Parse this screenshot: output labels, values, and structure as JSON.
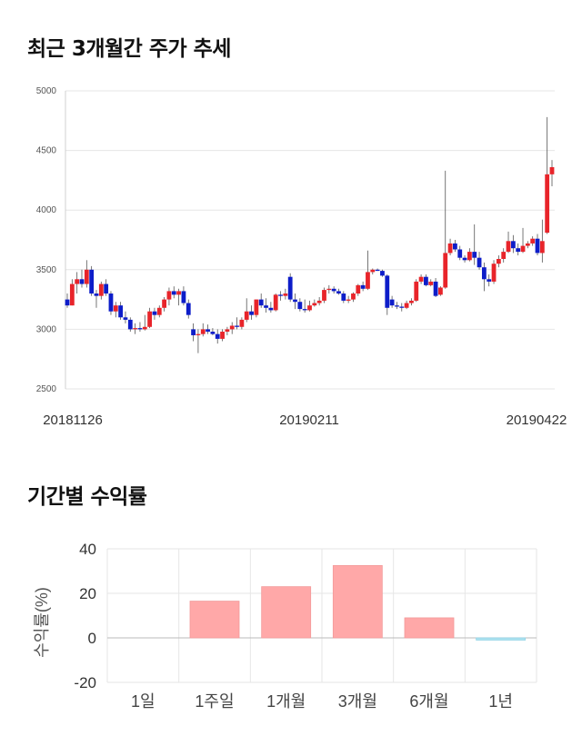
{
  "sections": {
    "price_title": "최근 3개월간 주가 추세",
    "returns_title": "기간별 수익률"
  },
  "colors": {
    "up": "#e8242a",
    "down": "#0d1dc9",
    "bar_positive": "#ffa8a8",
    "bar_negative": "#aee3f0",
    "grid": "#e6e6e6"
  },
  "chart_data": [
    {
      "type": "candlestick",
      "title": "최근 3개월간 주가 추세",
      "ylim": [
        2500,
        5000
      ],
      "yticks": [
        2500,
        3000,
        3500,
        4000,
        4500,
        5000
      ],
      "xticks": [
        "20181126",
        "20190211",
        "20190422"
      ],
      "grid": true,
      "candles": [
        [
          3250,
          3300,
          3180,
          3200
        ],
        [
          3200,
          3420,
          3200,
          3380
        ],
        [
          3380,
          3480,
          3300,
          3420
        ],
        [
          3420,
          3500,
          3350,
          3380
        ],
        [
          3380,
          3580,
          3350,
          3500
        ],
        [
          3500,
          3530,
          3280,
          3300
        ],
        [
          3300,
          3330,
          3180,
          3280
        ],
        [
          3280,
          3400,
          3250,
          3380
        ],
        [
          3380,
          3420,
          3280,
          3300
        ],
        [
          3300,
          3320,
          3120,
          3150
        ],
        [
          3150,
          3230,
          3100,
          3200
        ],
        [
          3200,
          3230,
          3080,
          3100
        ],
        [
          3100,
          3150,
          3050,
          3080
        ],
        [
          3080,
          3100,
          2980,
          3000
        ],
        [
          3000,
          3050,
          2960,
          3010
        ],
        [
          3010,
          3060,
          2980,
          3000
        ],
        [
          3000,
          3120,
          2990,
          3020
        ],
        [
          3020,
          3180,
          3010,
          3150
        ],
        [
          3150,
          3180,
          3080,
          3120
        ],
        [
          3120,
          3200,
          3100,
          3180
        ],
        [
          3180,
          3270,
          3150,
          3250
        ],
        [
          3250,
          3350,
          3200,
          3320
        ],
        [
          3320,
          3360,
          3260,
          3290
        ],
        [
          3290,
          3340,
          3200,
          3320
        ],
        [
          3320,
          3360,
          3200,
          3220
        ],
        [
          3220,
          3250,
          3090,
          3120
        ],
        [
          3000,
          3050,
          2900,
          2950
        ],
        [
          2950,
          3000,
          2800,
          2960
        ],
        [
          2960,
          3050,
          2940,
          3000
        ],
        [
          3000,
          3040,
          2960,
          2980
        ],
        [
          2980,
          3010,
          2950,
          2960
        ],
        [
          2960,
          3000,
          2880,
          2920
        ],
        [
          2920,
          3000,
          2900,
          2980
        ],
        [
          2980,
          3020,
          2950,
          3000
        ],
        [
          3000,
          3060,
          2960,
          3030
        ],
        [
          3030,
          3100,
          3000,
          3020
        ],
        [
          3020,
          3100,
          3000,
          3080
        ],
        [
          3080,
          3260,
          3060,
          3150
        ],
        [
          3150,
          3200,
          3080,
          3120
        ],
        [
          3120,
          3250,
          3100,
          3250
        ],
        [
          3250,
          3300,
          3180,
          3200
        ],
        [
          3200,
          3260,
          3140,
          3180
        ],
        [
          3180,
          3230,
          3140,
          3160
        ],
        [
          3160,
          3300,
          3150,
          3290
        ],
        [
          3290,
          3320,
          3240,
          3280
        ],
        [
          3280,
          3340,
          3250,
          3300
        ],
        [
          3440,
          3470,
          3230,
          3250
        ],
        [
          3250,
          3300,
          3170,
          3230
        ],
        [
          3230,
          3260,
          3150,
          3170
        ],
        [
          3170,
          3250,
          3140,
          3160
        ],
        [
          3160,
          3240,
          3150,
          3200
        ],
        [
          3200,
          3250,
          3190,
          3220
        ],
        [
          3220,
          3270,
          3200,
          3240
        ],
        [
          3240,
          3350,
          3220,
          3330
        ],
        [
          3330,
          3370,
          3300,
          3340
        ],
        [
          3340,
          3360,
          3300,
          3320
        ],
        [
          3320,
          3340,
          3290,
          3300
        ],
        [
          3300,
          3320,
          3220,
          3240
        ],
        [
          3240,
          3280,
          3220,
          3250
        ],
        [
          3250,
          3310,
          3230,
          3300
        ],
        [
          3300,
          3380,
          3280,
          3370
        ],
        [
          3370,
          3400,
          3320,
          3340
        ],
        [
          3340,
          3660,
          3330,
          3480
        ],
        [
          3480,
          3510,
          3460,
          3500
        ],
        [
          3500,
          3510,
          3490,
          3490
        ],
        [
          3490,
          3500,
          3440,
          3450
        ],
        [
          3450,
          3460,
          3120,
          3180
        ],
        [
          3250,
          3280,
          3180,
          3200
        ],
        [
          3200,
          3230,
          3170,
          3190
        ],
        [
          3190,
          3220,
          3150,
          3180
        ],
        [
          3180,
          3240,
          3170,
          3220
        ],
        [
          3220,
          3260,
          3200,
          3240
        ],
        [
          3240,
          3420,
          3230,
          3400
        ],
        [
          3400,
          3460,
          3380,
          3440
        ],
        [
          3440,
          3460,
          3360,
          3370
        ],
        [
          3370,
          3420,
          3360,
          3400
        ],
        [
          3400,
          3430,
          3270,
          3280
        ],
        [
          3290,
          3360,
          3280,
          3350
        ],
        [
          3350,
          4330,
          3340,
          3640
        ],
        [
          3640,
          3760,
          3620,
          3720
        ],
        [
          3720,
          3750,
          3650,
          3670
        ],
        [
          3670,
          3700,
          3580,
          3600
        ],
        [
          3600,
          3620,
          3560,
          3580
        ],
        [
          3580,
          3680,
          3570,
          3650
        ],
        [
          3650,
          3880,
          3540,
          3600
        ],
        [
          3600,
          3650,
          3500,
          3520
        ],
        [
          3520,
          3560,
          3320,
          3420
        ],
        [
          3420,
          3460,
          3360,
          3400
        ],
        [
          3400,
          3580,
          3380,
          3550
        ],
        [
          3550,
          3620,
          3520,
          3590
        ],
        [
          3590,
          3680,
          3560,
          3650
        ],
        [
          3650,
          3820,
          3640,
          3740
        ],
        [
          3740,
          3790,
          3640,
          3680
        ],
        [
          3680,
          3720,
          3620,
          3650
        ],
        [
          3650,
          3850,
          3640,
          3700
        ],
        [
          3700,
          3740,
          3680,
          3720
        ],
        [
          3720,
          3780,
          3700,
          3760
        ],
        [
          3760,
          3800,
          3620,
          3640
        ],
        [
          3640,
          3920,
          3560,
          3740
        ],
        [
          3810,
          4780,
          3800,
          4300
        ],
        [
          4300,
          4420,
          4200,
          4360
        ]
      ]
    },
    {
      "type": "bar",
      "title": "기간별 수익률",
      "ylabel": "수익률(%)",
      "categories": [
        "1일",
        "1주일",
        "1개월",
        "3개월",
        "6개월",
        "1년"
      ],
      "values": [
        0,
        16.5,
        23,
        32.5,
        9,
        -1
      ],
      "ylim": [
        -20,
        40
      ],
      "yticks": [
        -20,
        0,
        20,
        40
      ],
      "grid": true
    }
  ]
}
